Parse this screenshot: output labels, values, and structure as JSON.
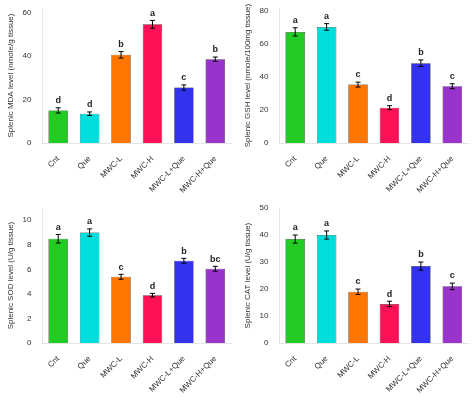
{
  "chart_data": [
    {
      "type": "bar",
      "ylabel": "Splenic MDA level (nmole/g tissue)",
      "categories": [
        "Cnt",
        "Que",
        "MWC-L",
        "MWC-H",
        "MWC-L+Que",
        "MWC-H+Que"
      ],
      "values": [
        15.0,
        13.5,
        40.5,
        54.5,
        25.5,
        38.5
      ],
      "errors": [
        1.2,
        0.8,
        1.5,
        1.8,
        1.2,
        1.0
      ],
      "annotations": [
        "d",
        "d",
        "b",
        "a",
        "c",
        "b"
      ],
      "colors": [
        "#22cc22",
        "#00dddd",
        "#ff7700",
        "#ff1155",
        "#3333ee",
        "#9933cc"
      ],
      "ylim": [
        0,
        62
      ],
      "yticks": [
        0,
        20,
        40,
        60
      ],
      "grid": false
    },
    {
      "type": "bar",
      "ylabel": "Splenic GSH level (nmole/100mg tissue)",
      "categories": [
        "Cnt",
        "Que",
        "MWC-L",
        "MWC-H",
        "MWC-L+Que",
        "MWC-H+Que"
      ],
      "values": [
        67.5,
        70.5,
        35.5,
        21.5,
        48.5,
        34.5
      ],
      "errors": [
        2.5,
        2.0,
        1.5,
        1.2,
        2.0,
        1.5
      ],
      "annotations": [
        "a",
        "a",
        "c",
        "d",
        "b",
        "c"
      ],
      "colors": [
        "#22cc22",
        "#00dddd",
        "#ff7700",
        "#ff1155",
        "#3333ee",
        "#9933cc"
      ],
      "ylim": [
        0,
        82
      ],
      "yticks": [
        0,
        20,
        40,
        60,
        80
      ],
      "grid": false
    },
    {
      "type": "bar",
      "ylabel": "Splenic SOD level (U/g tissue)",
      "categories": [
        "Cnt",
        "Que",
        "MWC-L",
        "MWC-H",
        "MWC-L+Que",
        "MWC-H+Que"
      ],
      "values": [
        8.5,
        9.0,
        5.4,
        3.9,
        6.7,
        6.05
      ],
      "errors": [
        0.35,
        0.3,
        0.2,
        0.15,
        0.2,
        0.2
      ],
      "annotations": [
        "a",
        "a",
        "c",
        "d",
        "b",
        "bc"
      ],
      "colors": [
        "#22cc22",
        "#00dddd",
        "#ff7700",
        "#ff1155",
        "#3333ee",
        "#9933cc"
      ],
      "ylim": [
        0,
        11
      ],
      "yticks": [
        0,
        2,
        4,
        6,
        8,
        10
      ],
      "grid": false
    },
    {
      "type": "bar",
      "ylabel": "Splenic CAT level (U/g tissue)",
      "categories": [
        "Cnt",
        "Que",
        "MWC-L",
        "MWC-H",
        "MWC-L+Que",
        "MWC-H+Que"
      ],
      "values": [
        38.5,
        40.0,
        19.0,
        14.5,
        28.5,
        21.0
      ],
      "errors": [
        1.5,
        1.5,
        1.0,
        1.0,
        1.5,
        1.2
      ],
      "annotations": [
        "a",
        "a",
        "c",
        "d",
        "b",
        "c"
      ],
      "colors": [
        "#22cc22",
        "#00dddd",
        "#ff7700",
        "#ff1155",
        "#3333ee",
        "#9933cc"
      ],
      "ylim": [
        0,
        50
      ],
      "yticks": [
        0,
        10,
        20,
        30,
        40,
        50
      ],
      "grid": false
    }
  ]
}
